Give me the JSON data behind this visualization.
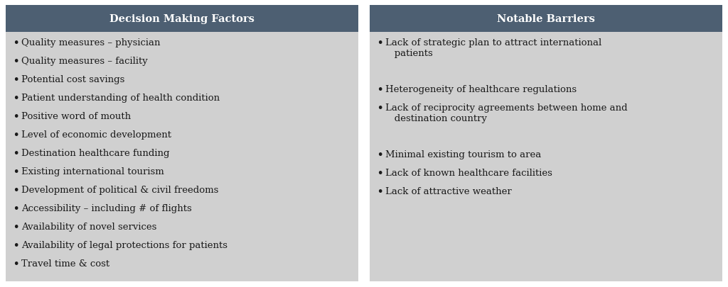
{
  "header_bg_color": "#4d5f72",
  "body_bg_color": "#d0d0d0",
  "outer_bg_color": "#ffffff",
  "header_text_color": "#ffffff",
  "body_text_color": "#1a1a1a",
  "header_font_size": 10.5,
  "body_font_size": 9.5,
  "col1_header": "Decision Making Factors",
  "col2_header": "Notable Barriers",
  "col1_items": [
    "Quality measures – physician",
    "Quality measures – facility",
    "Potential cost savings",
    "Patient understanding of health condition",
    "Positive word of mouth",
    "Level of economic development",
    "Destination healthcare funding",
    "Existing international tourism",
    "Development of political & civil freedoms",
    "Accessibility – including # of flights",
    "Availability of novel services",
    "Availability of legal protections for patients",
    "Travel time & cost"
  ],
  "col2_items": [
    "Lack of strategic plan to attract international\n   patients",
    "Heterogeneity of healthcare regulations",
    "Lack of reciprocity agreements between home and\n   destination country",
    "Minimal existing tourism to area",
    "Lack of known healthcare facilities",
    "Lack of attractive weather"
  ],
  "col2_line_heights": [
    2,
    1,
    2,
    1,
    1,
    1
  ],
  "figure_width": 10.24,
  "figure_height": 4.06,
  "dpi": 100
}
